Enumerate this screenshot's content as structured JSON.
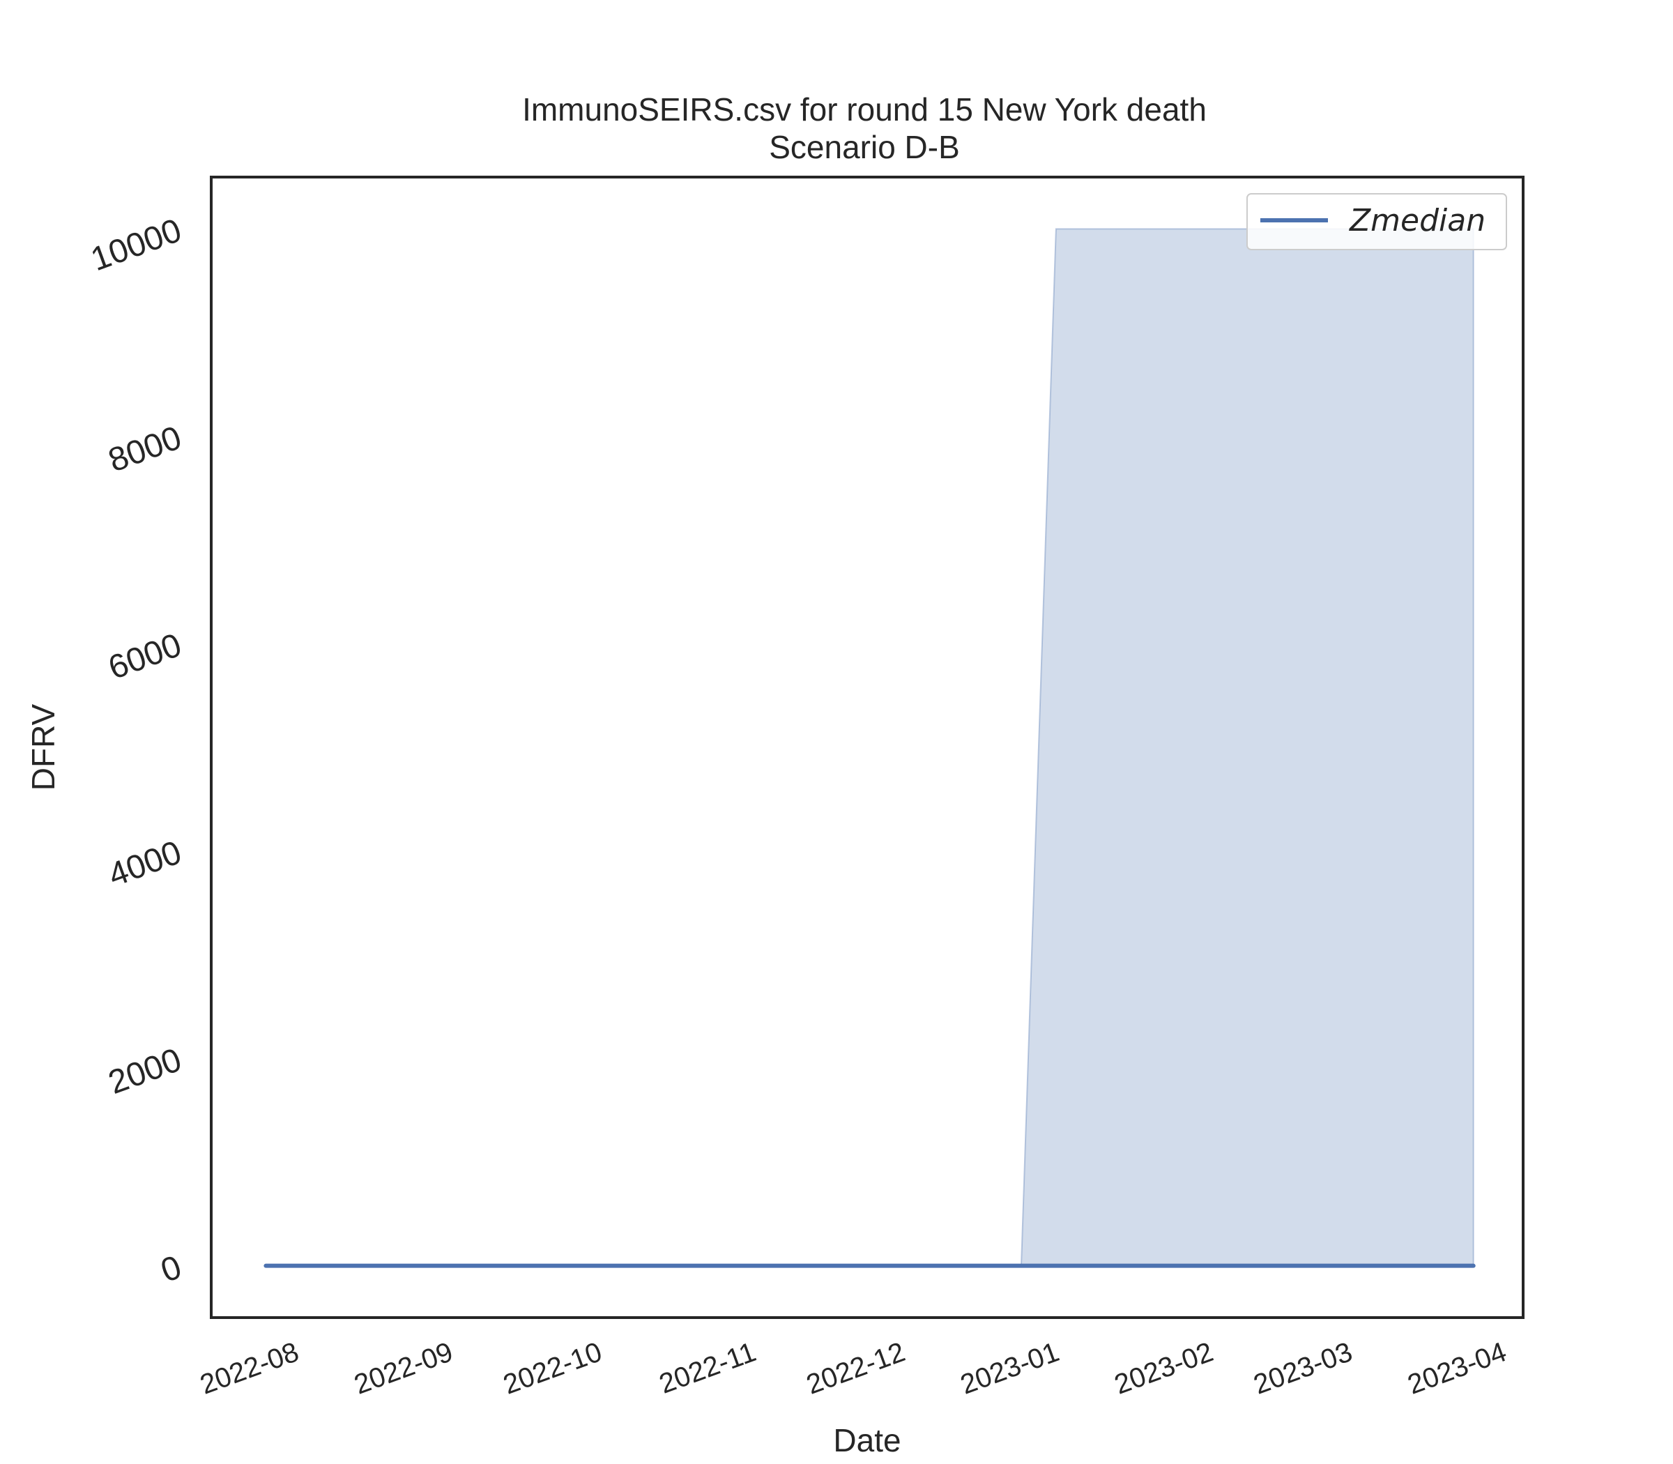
{
  "chart_data": {
    "type": "line",
    "title": "ImmunoSEIRS.csv for round 15 New York death",
    "subtitle": "Scenario D-B",
    "xlabel": "Date",
    "ylabel": "DFRV",
    "xlim": [
      "2022-07-14",
      "2023-04-04"
    ],
    "ylim": [
      -500,
      10500
    ],
    "x_ticks": [
      "2022-08",
      "2022-09",
      "2022-10",
      "2022-11",
      "2022-12",
      "2023-01",
      "2023-02",
      "2023-03",
      "2023-04"
    ],
    "y_ticks": [
      0,
      2000,
      4000,
      6000,
      8000,
      10000
    ],
    "grid": false,
    "legend": {
      "position": "top-right",
      "entries": [
        "Zmedian"
      ]
    },
    "series": [
      {
        "name": "Zmedian",
        "color": "#4c72b0",
        "x": [
          "2022-07-25",
          "2023-03-25"
        ],
        "y": [
          0,
          0
        ]
      }
    ],
    "band": {
      "color": "#4c72b0",
      "opacity": 0.25,
      "x": [
        "2022-12-24",
        "2022-12-31",
        "2023-03-25"
      ],
      "lower": [
        0,
        0,
        0
      ],
      "upper": [
        0,
        10000,
        10000
      ]
    }
  }
}
